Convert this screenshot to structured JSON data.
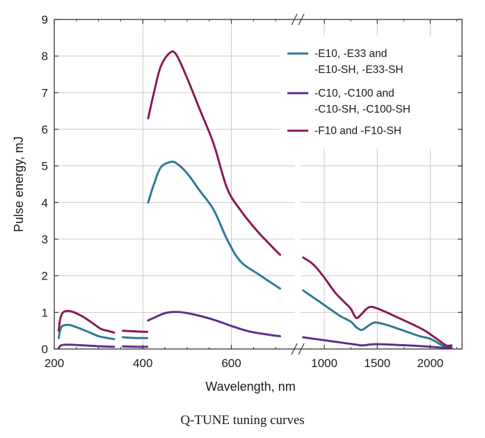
{
  "caption": "Q-TUNE tuning curves",
  "chart_data": {
    "type": "line",
    "xlabel": "Wavelength, nm",
    "ylabel": "Pulse energy, mJ",
    "ylim": [
      0,
      9
    ],
    "y_ticks": [
      "0",
      "1",
      "2",
      "3",
      "4",
      "5",
      "6",
      "7",
      "8",
      "9"
    ],
    "axis_break": true,
    "panels": [
      {
        "xlim": [
          200,
          750
        ],
        "x_ticks": [
          {
            "value": 200,
            "label": "200"
          },
          {
            "value": 400,
            "label": "400"
          },
          {
            "value": 600,
            "label": "600"
          }
        ]
      },
      {
        "xlim": [
          750,
          2300
        ],
        "x_ticks": [
          {
            "value": 1000,
            "label": "1000"
          },
          {
            "value": 1500,
            "label": "1500"
          },
          {
            "value": 2000,
            "label": "2000"
          }
        ]
      }
    ],
    "grid": true,
    "legend_position": "top-right",
    "series": [
      {
        "name": "-E10, -E33 and\n-E10-SH, -E33-SH",
        "color": "#2e7a93",
        "segments": [
          [
            [
              210,
              0.3
            ],
            [
              213,
              0.5
            ],
            [
              216,
              0.6
            ],
            [
              220,
              0.64
            ],
            [
              230,
              0.66
            ],
            [
              240,
              0.64
            ],
            [
              260,
              0.55
            ],
            [
              280,
              0.45
            ],
            [
              300,
              0.35
            ],
            [
              320,
              0.3
            ],
            [
              335,
              0.27
            ]
          ],
          [
            [
              355,
              0.32
            ],
            [
              385,
              0.3
            ],
            [
              410,
              0.3
            ]
          ],
          [
            [
              412,
              4.0
            ],
            [
              425,
              4.5
            ],
            [
              440,
              4.95
            ],
            [
              460,
              5.1
            ],
            [
              475,
              5.08
            ],
            [
              500,
              4.8
            ],
            [
              530,
              4.3
            ],
            [
              560,
              3.8
            ],
            [
              590,
              3.0
            ],
            [
              620,
              2.4
            ],
            [
              660,
              2.05
            ],
            [
              710,
              1.65
            ]
          ],
          [
            [
              800,
              1.6
            ],
            [
              850,
              1.5
            ],
            [
              950,
              1.3
            ],
            [
              1050,
              1.1
            ],
            [
              1150,
              0.9
            ],
            [
              1250,
              0.75
            ],
            [
              1300,
              0.6
            ],
            [
              1350,
              0.52
            ],
            [
              1400,
              0.6
            ],
            [
              1450,
              0.7
            ],
            [
              1500,
              0.72
            ],
            [
              1600,
              0.65
            ],
            [
              1700,
              0.55
            ],
            [
              1800,
              0.45
            ],
            [
              1900,
              0.35
            ],
            [
              2000,
              0.28
            ],
            [
              2100,
              0.12
            ],
            [
              2150,
              0.05
            ],
            [
              2200,
              0.05
            ]
          ]
        ]
      },
      {
        "name": "-C10, -C100 and\n-C10-SH, -C100-SH",
        "color": "#5b2e8e",
        "segments": [
          [
            [
              210,
              0.02
            ],
            [
              213,
              0.08
            ],
            [
              218,
              0.11
            ],
            [
              230,
              0.12
            ],
            [
              250,
              0.11
            ],
            [
              280,
              0.09
            ],
            [
              310,
              0.07
            ],
            [
              335,
              0.06
            ]
          ],
          [
            [
              355,
              0.07
            ],
            [
              385,
              0.06
            ],
            [
              410,
              0.06
            ]
          ],
          [
            [
              412,
              0.78
            ],
            [
              430,
              0.88
            ],
            [
              450,
              0.98
            ],
            [
              470,
              1.01
            ],
            [
              490,
              1.0
            ],
            [
              520,
              0.93
            ],
            [
              560,
              0.8
            ],
            [
              600,
              0.63
            ],
            [
              640,
              0.48
            ],
            [
              690,
              0.38
            ],
            [
              710,
              0.35
            ]
          ],
          [
            [
              800,
              0.32
            ],
            [
              900,
              0.28
            ],
            [
              1000,
              0.24
            ],
            [
              1100,
              0.2
            ],
            [
              1200,
              0.16
            ],
            [
              1300,
              0.12
            ],
            [
              1350,
              0.1
            ],
            [
              1400,
              0.11
            ],
            [
              1450,
              0.13
            ],
            [
              1550,
              0.13
            ],
            [
              1700,
              0.11
            ],
            [
              1850,
              0.09
            ],
            [
              2000,
              0.06
            ],
            [
              2100,
              0.04
            ],
            [
              2200,
              0.02
            ]
          ]
        ]
      },
      {
        "name": "-F10 and -F10-SH",
        "color": "#8b1856",
        "segments": [
          [
            [
              210,
              0.5
            ],
            [
              213,
              0.8
            ],
            [
              217,
              0.95
            ],
            [
              222,
              1.02
            ],
            [
              232,
              1.04
            ],
            [
              245,
              1.0
            ],
            [
              265,
              0.88
            ],
            [
              285,
              0.72
            ],
            [
              305,
              0.55
            ],
            [
              320,
              0.5
            ],
            [
              335,
              0.45
            ]
          ],
          [
            [
              355,
              0.5
            ],
            [
              385,
              0.48
            ],
            [
              410,
              0.47
            ]
          ],
          [
            [
              412,
              6.3
            ],
            [
              425,
              7.0
            ],
            [
              440,
              7.7
            ],
            [
              460,
              8.08
            ],
            [
              475,
              8.05
            ],
            [
              500,
              7.4
            ],
            [
              530,
              6.5
            ],
            [
              560,
              5.6
            ],
            [
              590,
              4.4
            ],
            [
              620,
              3.8
            ],
            [
              660,
              3.2
            ],
            [
              710,
              2.57
            ]
          ],
          [
            [
              800,
              2.5
            ],
            [
              900,
              2.3
            ],
            [
              1000,
              1.95
            ],
            [
              1100,
              1.55
            ],
            [
              1200,
              1.25
            ],
            [
              1250,
              1.1
            ],
            [
              1300,
              0.85
            ],
            [
              1350,
              0.95
            ],
            [
              1400,
              1.1
            ],
            [
              1450,
              1.15
            ],
            [
              1550,
              1.05
            ],
            [
              1700,
              0.85
            ],
            [
              1850,
              0.65
            ],
            [
              1950,
              0.5
            ],
            [
              2050,
              0.3
            ],
            [
              2150,
              0.1
            ],
            [
              2200,
              0.1
            ]
          ]
        ]
      }
    ]
  }
}
